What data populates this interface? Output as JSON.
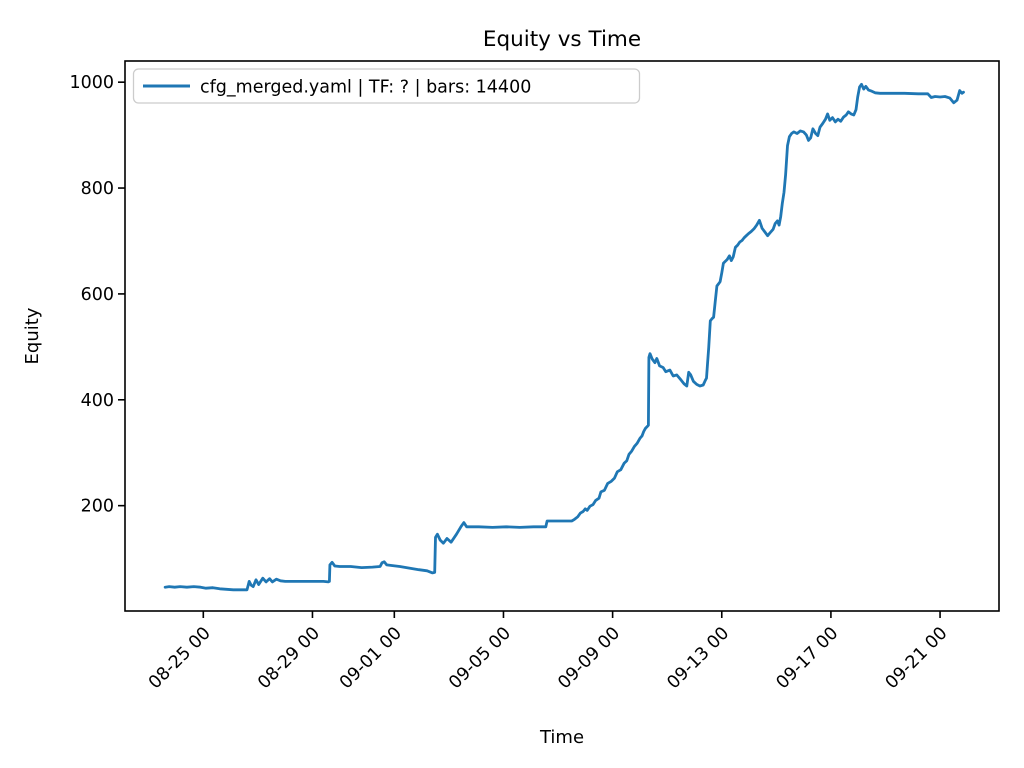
{
  "figure": {
    "background": "#ffffff",
    "text_color": "#000000"
  },
  "chart_data": {
    "type": "line",
    "title": "Equity vs Time",
    "xlabel": "Time",
    "ylabel": "Equity",
    "grid": "off",
    "x_unit": "days since tick 08-25 00 (date labels are MM-DD HH)",
    "xlim": [
      -2.87,
      29.16
    ],
    "ylim": [
      1,
      1040
    ],
    "x_ticks": [
      {
        "t": 0,
        "label": "08-25 00"
      },
      {
        "t": 4,
        "label": "08-29 00"
      },
      {
        "t": 7,
        "label": "09-01 00"
      },
      {
        "t": 11,
        "label": "09-05 00"
      },
      {
        "t": 15,
        "label": "09-09 00"
      },
      {
        "t": 19,
        "label": "09-13 00"
      },
      {
        "t": 23,
        "label": "09-17 00"
      },
      {
        "t": 27,
        "label": "09-21 00"
      }
    ],
    "y_ticks": [
      {
        "v": 200,
        "label": "200"
      },
      {
        "v": 400,
        "label": "400"
      },
      {
        "v": 600,
        "label": "600"
      },
      {
        "v": 800,
        "label": "800"
      },
      {
        "v": 1000,
        "label": "1000"
      }
    ],
    "legend": {
      "position": "upper left",
      "border_color": "#cccccc",
      "entries": [
        {
          "label": "cfg_merged.yaml | TF: ? | bars: 14400",
          "color": "#1f77b4"
        }
      ]
    },
    "series": [
      {
        "name": "cfg_merged.yaml | TF: ? | bars: 14400",
        "color": "#1f77b4",
        "points": [
          [
            -1.4,
            46
          ],
          [
            -1.25,
            47
          ],
          [
            -1.05,
            46
          ],
          [
            -0.85,
            47
          ],
          [
            -0.6,
            46
          ],
          [
            -0.35,
            47
          ],
          [
            -0.1,
            46
          ],
          [
            0.1,
            44
          ],
          [
            0.35,
            45
          ],
          [
            0.6,
            43
          ],
          [
            0.85,
            42
          ],
          [
            1.1,
            41
          ],
          [
            1.4,
            41
          ],
          [
            1.6,
            41
          ],
          [
            1.68,
            57
          ],
          [
            1.75,
            50
          ],
          [
            1.83,
            47
          ],
          [
            1.93,
            60
          ],
          [
            2.03,
            51
          ],
          [
            2.18,
            63
          ],
          [
            2.3,
            56
          ],
          [
            2.43,
            62
          ],
          [
            2.53,
            56
          ],
          [
            2.68,
            61
          ],
          [
            2.83,
            58
          ],
          [
            3.0,
            57
          ],
          [
            3.4,
            57
          ],
          [
            3.9,
            57
          ],
          [
            4.4,
            57
          ],
          [
            4.58,
            56
          ],
          [
            4.62,
            57
          ],
          [
            4.64,
            88
          ],
          [
            4.72,
            93
          ],
          [
            4.82,
            86
          ],
          [
            5.0,
            85
          ],
          [
            5.4,
            85
          ],
          [
            5.8,
            83
          ],
          [
            6.2,
            84
          ],
          [
            6.48,
            85
          ],
          [
            6.55,
            92
          ],
          [
            6.63,
            94
          ],
          [
            6.72,
            88
          ],
          [
            6.9,
            87
          ],
          [
            7.2,
            85
          ],
          [
            7.55,
            82
          ],
          [
            7.9,
            79
          ],
          [
            8.2,
            77
          ],
          [
            8.4,
            73
          ],
          [
            8.48,
            74
          ],
          [
            8.51,
            140
          ],
          [
            8.58,
            146
          ],
          [
            8.68,
            135
          ],
          [
            8.8,
            129
          ],
          [
            8.93,
            138
          ],
          [
            9.08,
            131
          ],
          [
            9.28,
            146
          ],
          [
            9.45,
            161
          ],
          [
            9.55,
            168
          ],
          [
            9.65,
            160
          ],
          [
            10.1,
            160
          ],
          [
            10.6,
            159
          ],
          [
            11.1,
            160
          ],
          [
            11.6,
            159
          ],
          [
            12.1,
            160
          ],
          [
            12.55,
            160
          ],
          [
            12.6,
            171
          ],
          [
            13.0,
            171
          ],
          [
            13.5,
            171
          ],
          [
            13.6,
            174
          ],
          [
            13.72,
            179
          ],
          [
            13.82,
            186
          ],
          [
            13.92,
            189
          ],
          [
            14.0,
            194
          ],
          [
            14.07,
            191
          ],
          [
            14.17,
            199
          ],
          [
            14.28,
            202
          ],
          [
            14.38,
            210
          ],
          [
            14.5,
            214
          ],
          [
            14.57,
            226
          ],
          [
            14.7,
            229
          ],
          [
            14.82,
            242
          ],
          [
            14.95,
            246
          ],
          [
            15.07,
            252
          ],
          [
            15.17,
            264
          ],
          [
            15.3,
            268
          ],
          [
            15.42,
            280
          ],
          [
            15.52,
            285
          ],
          [
            15.6,
            297
          ],
          [
            15.7,
            303
          ],
          [
            15.8,
            312
          ],
          [
            15.9,
            318
          ],
          [
            16.0,
            327
          ],
          [
            16.08,
            332
          ],
          [
            16.14,
            340
          ],
          [
            16.2,
            346
          ],
          [
            16.28,
            350
          ],
          [
            16.31,
            352
          ],
          [
            16.33,
            480
          ],
          [
            16.37,
            487
          ],
          [
            16.45,
            477
          ],
          [
            16.55,
            470
          ],
          [
            16.62,
            478
          ],
          [
            16.72,
            464
          ],
          [
            16.85,
            461
          ],
          [
            16.95,
            453
          ],
          [
            17.1,
            456
          ],
          [
            17.22,
            445
          ],
          [
            17.35,
            447
          ],
          [
            17.5,
            438
          ],
          [
            17.62,
            430
          ],
          [
            17.72,
            426
          ],
          [
            17.79,
            452
          ],
          [
            17.86,
            447
          ],
          [
            17.96,
            435
          ],
          [
            18.08,
            429
          ],
          [
            18.2,
            426
          ],
          [
            18.32,
            428
          ],
          [
            18.4,
            437
          ],
          [
            18.44,
            441
          ],
          [
            18.48,
            470
          ],
          [
            18.52,
            498
          ],
          [
            18.58,
            549
          ],
          [
            18.64,
            553
          ],
          [
            18.7,
            556
          ],
          [
            18.76,
            585
          ],
          [
            18.82,
            615
          ],
          [
            18.88,
            619
          ],
          [
            18.94,
            623
          ],
          [
            19.0,
            640
          ],
          [
            19.06,
            658
          ],
          [
            19.12,
            661
          ],
          [
            19.2,
            665
          ],
          [
            19.28,
            672
          ],
          [
            19.35,
            663
          ],
          [
            19.42,
            670
          ],
          [
            19.5,
            688
          ],
          [
            19.58,
            692
          ],
          [
            19.66,
            698
          ],
          [
            19.74,
            701
          ],
          [
            19.82,
            706
          ],
          [
            19.9,
            710
          ],
          [
            19.98,
            714
          ],
          [
            20.08,
            718
          ],
          [
            20.18,
            723
          ],
          [
            20.28,
            730
          ],
          [
            20.38,
            739
          ],
          [
            20.48,
            724
          ],
          [
            20.58,
            717
          ],
          [
            20.68,
            710
          ],
          [
            20.78,
            716
          ],
          [
            20.88,
            722
          ],
          [
            20.96,
            733
          ],
          [
            21.04,
            738
          ],
          [
            21.1,
            730
          ],
          [
            21.16,
            746
          ],
          [
            21.22,
            771
          ],
          [
            21.28,
            792
          ],
          [
            21.34,
            825
          ],
          [
            21.41,
            880
          ],
          [
            21.48,
            897
          ],
          [
            21.56,
            903
          ],
          [
            21.64,
            906
          ],
          [
            21.76,
            903
          ],
          [
            21.88,
            908
          ],
          [
            22.0,
            906
          ],
          [
            22.1,
            900
          ],
          [
            22.18,
            890
          ],
          [
            22.26,
            895
          ],
          [
            22.34,
            912
          ],
          [
            22.44,
            903
          ],
          [
            22.52,
            899
          ],
          [
            22.6,
            915
          ],
          [
            22.7,
            922
          ],
          [
            22.8,
            930
          ],
          [
            22.88,
            940
          ],
          [
            22.96,
            928
          ],
          [
            23.06,
            933
          ],
          [
            23.16,
            925
          ],
          [
            23.26,
            930
          ],
          [
            23.36,
            926
          ],
          [
            23.46,
            934
          ],
          [
            23.56,
            938
          ],
          [
            23.64,
            944
          ],
          [
            23.74,
            940
          ],
          [
            23.84,
            938
          ],
          [
            23.92,
            948
          ],
          [
            23.98,
            972
          ],
          [
            24.05,
            991
          ],
          [
            24.12,
            996
          ],
          [
            24.2,
            987
          ],
          [
            24.28,
            992
          ],
          [
            24.38,
            985
          ],
          [
            24.5,
            983
          ],
          [
            24.62,
            980
          ],
          [
            24.8,
            979
          ],
          [
            25.2,
            979
          ],
          [
            25.7,
            979
          ],
          [
            26.2,
            978
          ],
          [
            26.55,
            978
          ],
          [
            26.68,
            971
          ],
          [
            26.82,
            973
          ],
          [
            27.0,
            972
          ],
          [
            27.18,
            973
          ],
          [
            27.36,
            970
          ],
          [
            27.5,
            961
          ],
          [
            27.62,
            966
          ],
          [
            27.72,
            984
          ],
          [
            27.8,
            979
          ],
          [
            27.86,
            981
          ]
        ]
      }
    ]
  }
}
